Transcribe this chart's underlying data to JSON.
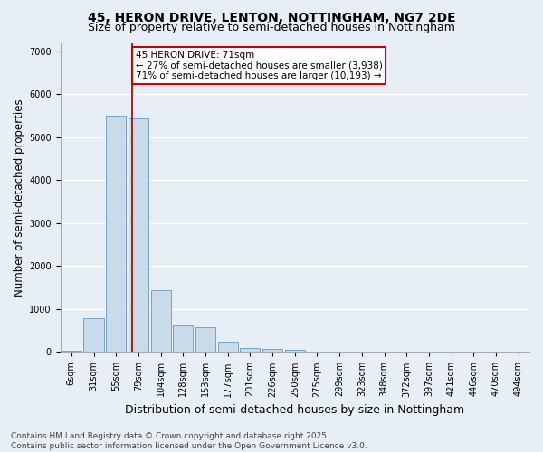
{
  "title": "45, HERON DRIVE, LENTON, NOTTINGHAM, NG7 2DE",
  "subtitle": "Size of property relative to semi-detached houses in Nottingham",
  "xlabel": "Distribution of semi-detached houses by size in Nottingham",
  "ylabel": "Number of semi-detached properties",
  "bins": [
    "6sqm",
    "31sqm",
    "55sqm",
    "79sqm",
    "104sqm",
    "128sqm",
    "153sqm",
    "177sqm",
    "201sqm",
    "226sqm",
    "250sqm",
    "275sqm",
    "299sqm",
    "323sqm",
    "348sqm",
    "372sqm",
    "397sqm",
    "421sqm",
    "446sqm",
    "470sqm",
    "494sqm"
  ],
  "values": [
    30,
    780,
    5500,
    5450,
    1450,
    620,
    580,
    240,
    100,
    70,
    55,
    0,
    0,
    0,
    0,
    0,
    0,
    0,
    0,
    0,
    0
  ],
  "bar_color": "#c9daea",
  "bar_edge_color": "#6699bb",
  "vline_x": 2.72,
  "vline_color": "#990000",
  "annotation_text": "45 HERON DRIVE: 71sqm\n← 27% of semi-detached houses are smaller (3,938)\n71% of semi-detached houses are larger (10,193) →",
  "annotation_box_color": "#cc0000",
  "ylim": [
    0,
    7200
  ],
  "yticks": [
    0,
    1000,
    2000,
    3000,
    4000,
    5000,
    6000,
    7000
  ],
  "background_color": "#e8eef5",
  "plot_bg_color": "#e8eef5",
  "grid_color": "#ffffff",
  "footer_line1": "Contains HM Land Registry data © Crown copyright and database right 2025.",
  "footer_line2": "Contains public sector information licensed under the Open Government Licence v3.0.",
  "title_fontsize": 10,
  "subtitle_fontsize": 9,
  "axis_label_fontsize": 8.5,
  "tick_fontsize": 7,
  "annot_fontsize": 7.5,
  "footer_fontsize": 6.5
}
